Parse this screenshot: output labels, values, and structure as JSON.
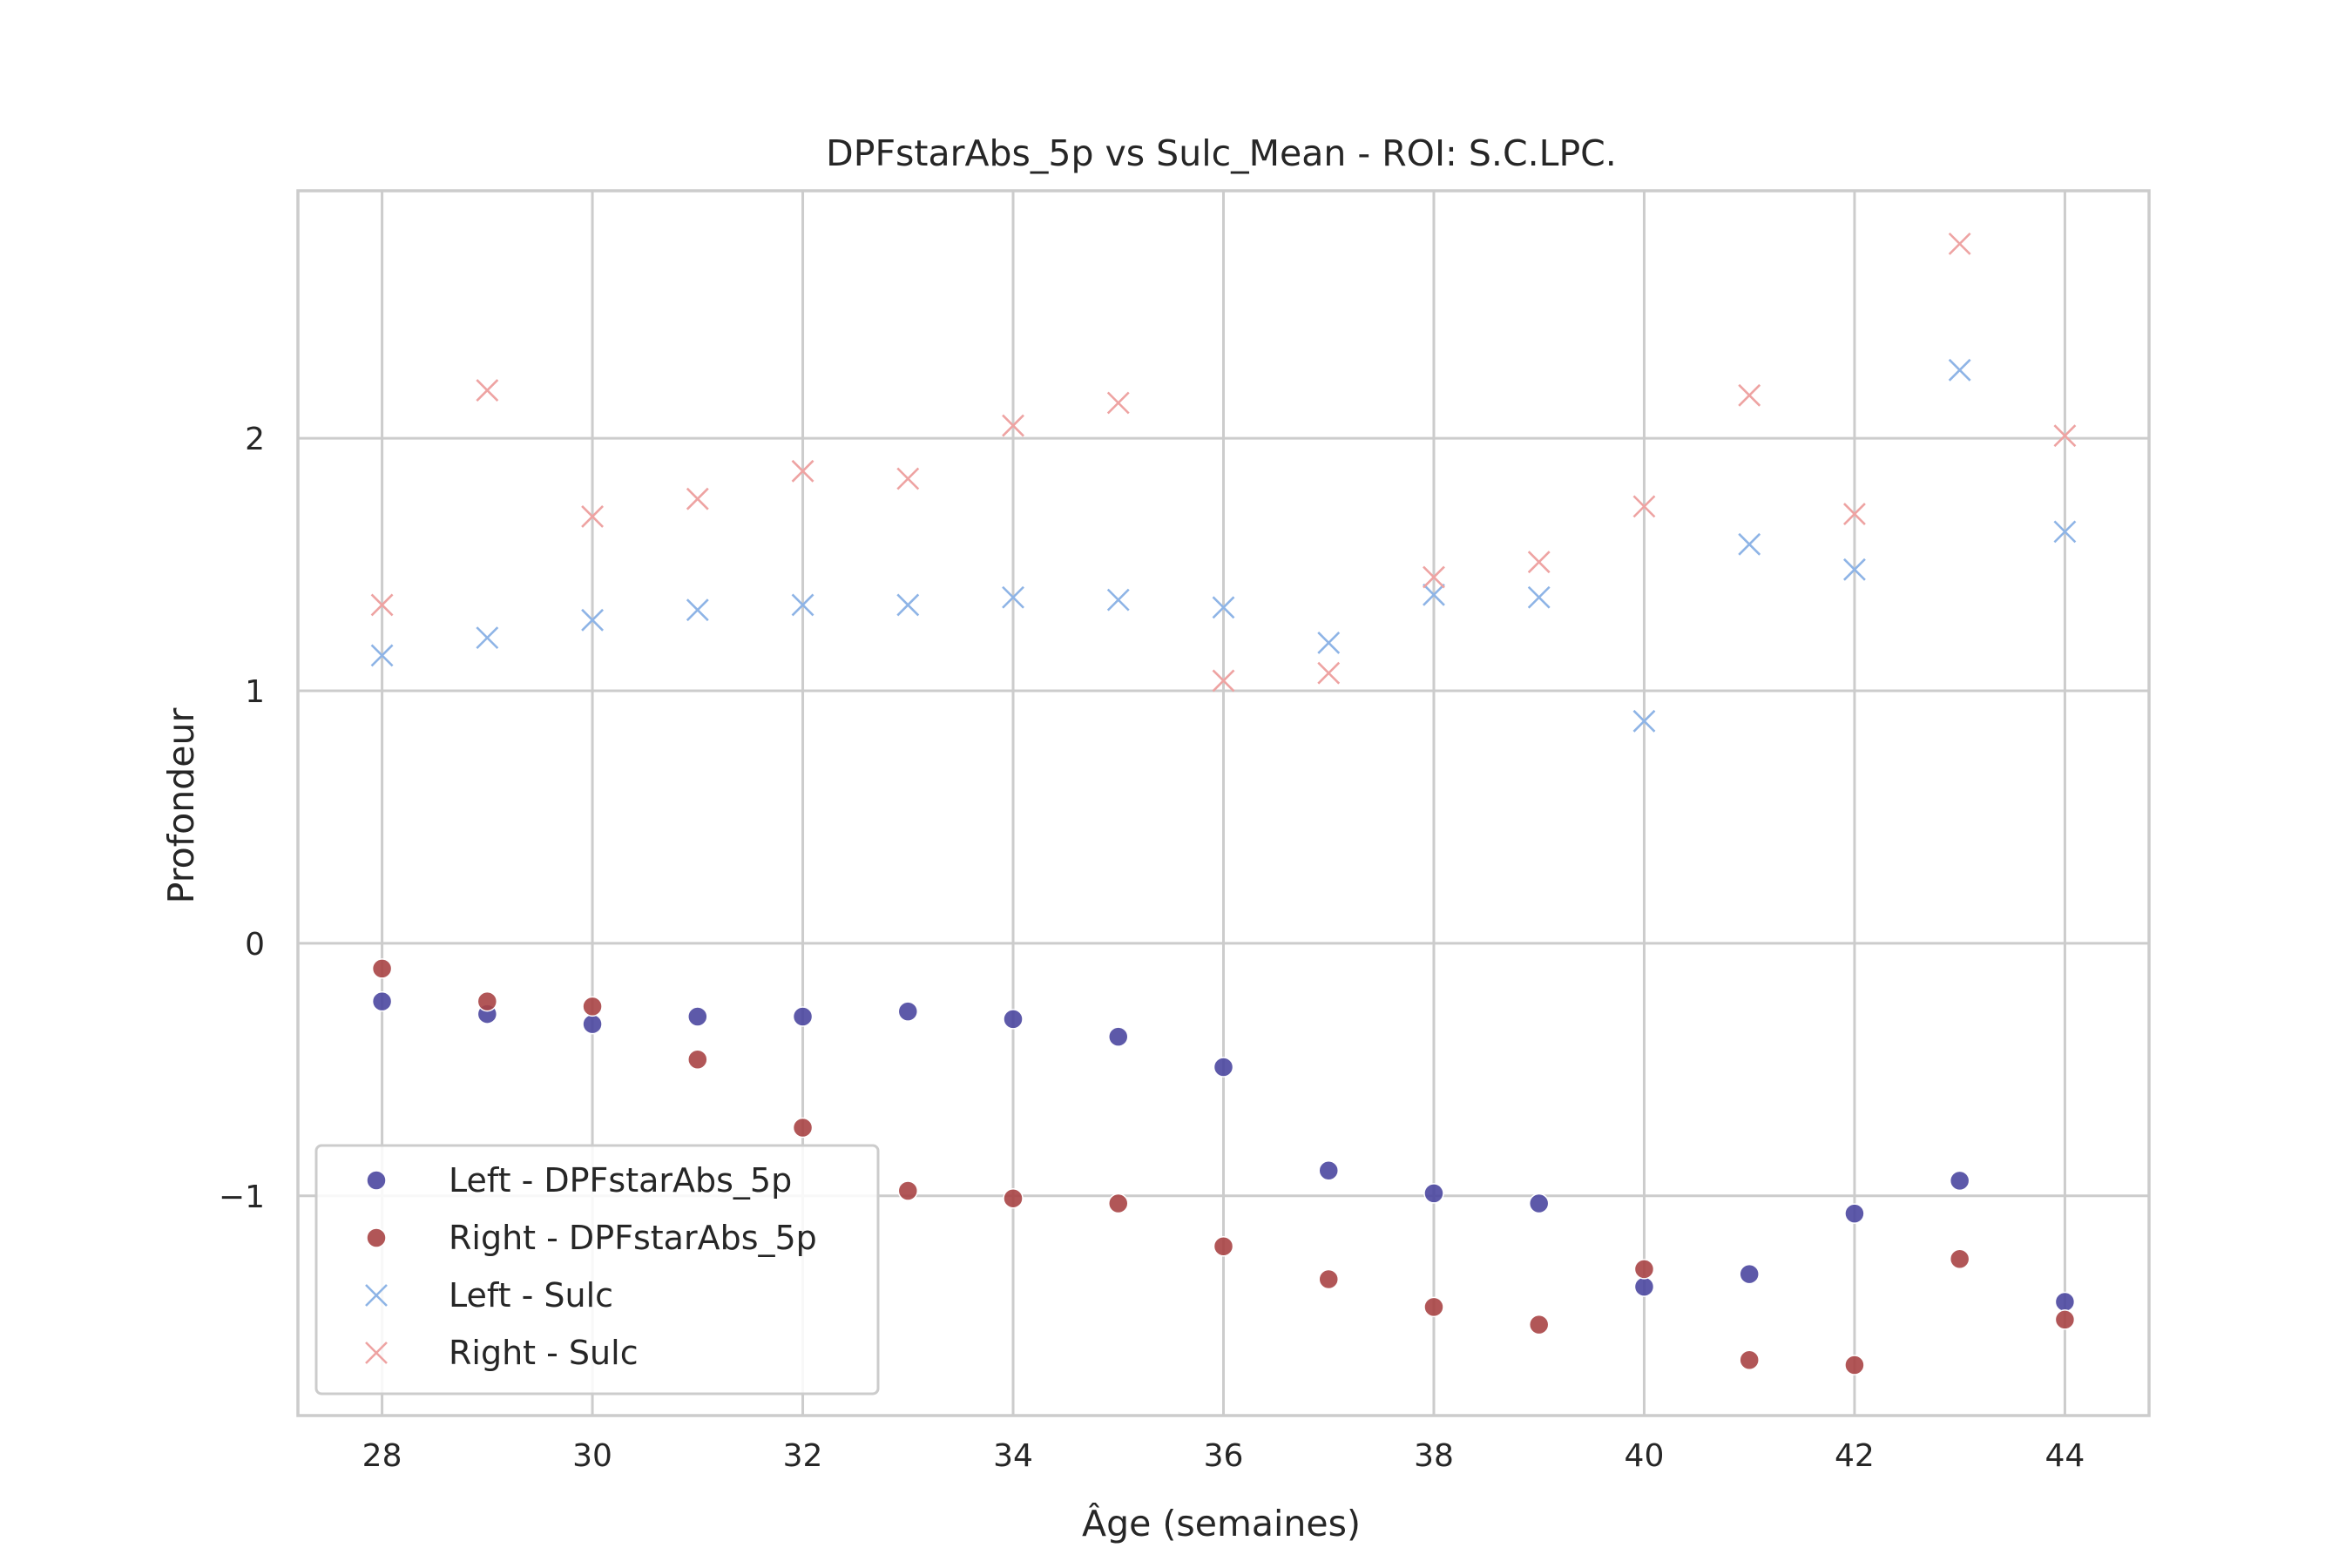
{
  "chart_data": {
    "type": "scatter",
    "title": "DPFstarAbs_5p vs Sulc_Mean - ROI: S.C.LPC.",
    "xlabel": "Âge (semaines)",
    "ylabel": "Profondeur",
    "xlim": [
      27.2,
      44.8
    ],
    "ylim": [
      -1.87,
      2.98
    ],
    "xticks": [
      28,
      30,
      32,
      34,
      36,
      38,
      40,
      42,
      44
    ],
    "yticks": [
      -1,
      0,
      1,
      2
    ],
    "ytick_labels": [
      "−1",
      "0",
      "1",
      "2"
    ],
    "grid": true,
    "legend_position": "lower-left",
    "series": [
      {
        "name": "Left - DPFstarAbs_5p",
        "marker": "circle",
        "color": "#4b47a0",
        "x": [
          28,
          29,
          30,
          31,
          32,
          33,
          34,
          35,
          36,
          37,
          38,
          39,
          40,
          41,
          42,
          43,
          44
        ],
        "y": [
          -0.23,
          -0.28,
          -0.32,
          -0.29,
          -0.29,
          -0.27,
          -0.3,
          -0.37,
          -0.49,
          -0.9,
          -0.99,
          -1.03,
          -1.36,
          -1.31,
          -1.07,
          -0.94,
          -1.42
        ]
      },
      {
        "name": "Right - DPFstarAbs_5p",
        "marker": "circle",
        "color": "#a94445",
        "x": [
          28,
          29,
          30,
          31,
          32,
          33,
          34,
          35,
          36,
          37,
          38,
          39,
          40,
          41,
          42,
          43,
          44
        ],
        "y": [
          -0.1,
          -0.23,
          -0.25,
          -0.46,
          -0.73,
          -0.98,
          -1.01,
          -1.03,
          -1.2,
          -1.33,
          -1.44,
          -1.51,
          -1.29,
          -1.65,
          -1.67,
          -1.25,
          -1.49
        ]
      },
      {
        "name": "Left - Sulc",
        "marker": "x",
        "color": "#8eb4e6",
        "x": [
          28,
          29,
          30,
          31,
          32,
          33,
          34,
          35,
          36,
          37,
          38,
          39,
          40,
          41,
          42,
          43,
          44
        ],
        "y": [
          1.14,
          1.21,
          1.28,
          1.32,
          1.34,
          1.34,
          1.37,
          1.36,
          1.33,
          1.19,
          1.38,
          1.37,
          0.88,
          1.58,
          1.48,
          2.27,
          1.63
        ]
      },
      {
        "name": "Right - Sulc",
        "marker": "x",
        "color": "#eea3a2",
        "x": [
          28,
          29,
          30,
          31,
          32,
          33,
          34,
          35,
          36,
          37,
          38,
          39,
          40,
          41,
          42,
          43,
          44
        ],
        "y": [
          1.34,
          2.19,
          1.69,
          1.76,
          1.87,
          1.84,
          2.05,
          2.14,
          1.04,
          1.07,
          1.45,
          1.51,
          1.73,
          2.17,
          1.7,
          2.77,
          2.01
        ]
      }
    ]
  }
}
